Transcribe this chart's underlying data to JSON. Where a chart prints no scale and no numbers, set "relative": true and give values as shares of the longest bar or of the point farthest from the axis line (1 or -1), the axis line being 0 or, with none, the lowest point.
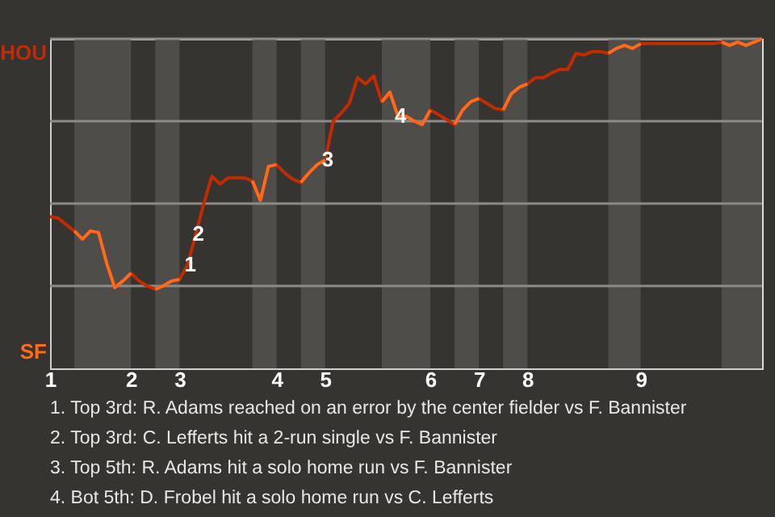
{
  "chart_data": {
    "type": "line",
    "relative": true,
    "categories": [
      "1",
      null,
      null,
      null,
      null,
      null,
      null,
      null,
      null,
      null,
      "2",
      null,
      null,
      null,
      null,
      null,
      "3",
      null,
      null,
      null,
      null,
      null,
      null,
      null,
      null,
      null,
      null,
      null,
      "4",
      null,
      null,
      null,
      null,
      null,
      "5",
      null,
      null,
      null,
      null,
      null,
      null,
      null,
      null,
      null,
      null,
      null,
      null,
      "6",
      null,
      null,
      null,
      null,
      null,
      "7",
      null,
      null,
      null,
      null,
      null,
      "8",
      null,
      null,
      null,
      null,
      null,
      null,
      null,
      null,
      null,
      null,
      null,
      null,
      null,
      "9",
      null,
      null,
      null,
      null,
      null,
      null,
      null,
      null,
      null,
      null,
      null,
      null,
      null,
      null,
      null
    ],
    "series": [
      {
        "color": "#c22b00",
        "values": [
          0.46,
          0.456,
          0.436,
          0.417,
          0.392,
          0.417,
          0.412,
          0.319,
          0.245,
          0.265,
          0.289,
          0.265,
          0.25,
          0.24,
          0.25,
          0.265,
          0.27,
          0.314,
          0.407,
          0.5,
          0.583,
          0.559,
          0.578,
          0.578,
          0.578,
          0.569,
          0.51,
          0.613,
          0.618,
          0.593,
          0.574,
          0.564,
          0.593,
          0.618,
          0.632,
          0.75,
          0.775,
          0.804,
          0.882,
          0.863,
          0.887,
          0.809,
          0.838,
          0.765,
          0.765,
          0.75,
          0.74,
          0.784,
          0.77,
          0.755,
          0.74,
          0.784,
          0.809,
          0.819,
          0.804,
          0.789,
          0.784,
          0.833,
          0.853,
          0.863,
          0.882,
          0.882,
          0.897,
          0.907,
          0.907,
          0.956,
          0.951,
          0.961,
          0.961,
          0.956,
          0.971,
          0.98,
          0.971,
          0.985,
          0.985,
          0.985,
          0.985,
          0.985,
          0.985,
          0.985,
          0.985,
          0.985,
          0.985,
          0.99,
          0.98,
          0.99,
          0.98,
          0.99,
          1.0
        ]
      },
      {
        "color": "#ff6a1c",
        "values": [
          null,
          null,
          null,
          0.417,
          0.392,
          0.417,
          0.412,
          0.319,
          0.245,
          0.265,
          0.289,
          null,
          null,
          0.24,
          0.25,
          0.265,
          0.27,
          null,
          null,
          null,
          null,
          null,
          null,
          null,
          null,
          0.569,
          0.51,
          0.613,
          0.618,
          null,
          null,
          0.564,
          0.593,
          0.618,
          0.632,
          null,
          null,
          null,
          null,
          null,
          null,
          0.809,
          0.838,
          0.765,
          0.765,
          0.75,
          0.74,
          0.784,
          null,
          null,
          0.74,
          0.784,
          0.809,
          0.819,
          null,
          null,
          0.784,
          0.833,
          0.853,
          0.863,
          null,
          null,
          null,
          null,
          null,
          null,
          null,
          null,
          null,
          0.956,
          0.971,
          0.98,
          0.971,
          0.985,
          null,
          null,
          null,
          null,
          null,
          null,
          null,
          null,
          null,
          0.99,
          0.98,
          0.99,
          0.98,
          0.99,
          1.0
        ]
      }
    ],
    "grid": false,
    "ref_lines": [
      {
        "axis": "y",
        "value": 0.25,
        "color": "#8c8b87"
      },
      {
        "axis": "y",
        "value": 0.5,
        "color": "#8c8b87"
      },
      {
        "axis": "y",
        "value": 0.75,
        "color": "#8c8b87"
      },
      {
        "axis": "y",
        "value": 1.0,
        "color": "#8c8b87"
      }
    ],
    "annotations": [
      "HOU",
      "SF",
      {
        "text": "1",
        "y": 0.314
      },
      {
        "text": "2",
        "y": 0.407
      },
      {
        "text": "3",
        "y": 0.632
      },
      {
        "text": "4",
        "y": 0.765
      },
      "1. Top 3rd: R. Adams reached on an error by the center fielder vs F. Bannister",
      "2. Top 3rd: C. Lefferts hit a 2-run single vs F. Bannister",
      "3. Top 5th: R. Adams hit a solo home run vs F. Bannister",
      "4. Bot 5th: D. Frobel hit a solo home run vs C. Lefferts"
    ]
  }
}
